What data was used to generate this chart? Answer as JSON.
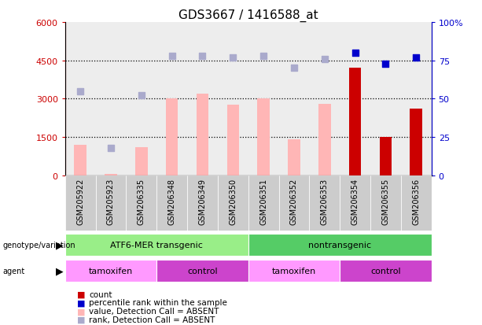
{
  "title": "GDS3667 / 1416588_at",
  "samples": [
    "GSM205922",
    "GSM205923",
    "GSM206335",
    "GSM206348",
    "GSM206349",
    "GSM206350",
    "GSM206351",
    "GSM206352",
    "GSM206353",
    "GSM206354",
    "GSM206355",
    "GSM206356"
  ],
  "bar_values": [
    1200,
    50,
    1100,
    3000,
    3200,
    2750,
    3000,
    1400,
    2800,
    4200,
    1500,
    2600
  ],
  "bar_absent": [
    true,
    true,
    true,
    true,
    true,
    true,
    true,
    true,
    true,
    false,
    false,
    false
  ],
  "rank_dots_pct": [
    55,
    18,
    52,
    78,
    78,
    77,
    78,
    70,
    76,
    80,
    73,
    77
  ],
  "rank_absent": [
    true,
    true,
    true,
    true,
    true,
    true,
    true,
    true,
    true,
    false,
    false,
    false
  ],
  "ylim_left": [
    0,
    6000
  ],
  "ylim_right": [
    0,
    100
  ],
  "yticks_left": [
    0,
    1500,
    3000,
    4500,
    6000
  ],
  "ytick_labels_left": [
    "0",
    "1500",
    "3000",
    "4500",
    "6000"
  ],
  "yticks_right": [
    0,
    25,
    50,
    75,
    100
  ],
  "ytick_labels_right": [
    "0",
    "25",
    "50",
    "75",
    "100%"
  ],
  "bar_color_absent": "#FFB6B6",
  "bar_color_present": "#CC0000",
  "dot_color_absent": "#AAAACC",
  "dot_color_present": "#0000CC",
  "dot_size": 40,
  "genotype_labels": [
    {
      "label": "ATF6-MER transgenic",
      "start": 0,
      "end": 6,
      "color": "#99EE88"
    },
    {
      "label": "nontransgenic",
      "start": 6,
      "end": 12,
      "color": "#55CC66"
    }
  ],
  "agent_labels": [
    {
      "label": "tamoxifen",
      "start": 0,
      "end": 3,
      "color": "#FF99FF"
    },
    {
      "label": "control",
      "start": 3,
      "end": 6,
      "color": "#CC44CC"
    },
    {
      "label": "tamoxifen",
      "start": 6,
      "end": 9,
      "color": "#FF99FF"
    },
    {
      "label": "control",
      "start": 9,
      "end": 12,
      "color": "#CC44CC"
    }
  ],
  "legend_items": [
    {
      "label": "count",
      "color": "#CC0000"
    },
    {
      "label": "percentile rank within the sample",
      "color": "#0000CC"
    },
    {
      "label": "value, Detection Call = ABSENT",
      "color": "#FFB6B6"
    },
    {
      "label": "rank, Detection Call = ABSENT",
      "color": "#AAAACC"
    }
  ],
  "left_axis_color": "#CC0000",
  "right_axis_color": "#0000CC",
  "sample_bg_color": "#CCCCCC",
  "chart_bg_color": "#FFFFFF"
}
